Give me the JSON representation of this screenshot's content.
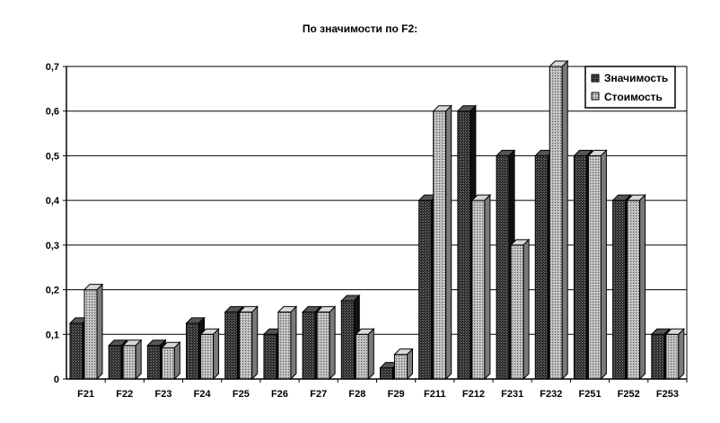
{
  "chart_data": {
    "type": "bar",
    "title": "По значимости по F2:",
    "xlabel": "",
    "ylabel": "",
    "categories": [
      "F21",
      "F22",
      "F23",
      "F24",
      "F25",
      "F26",
      "F27",
      "F28",
      "F29",
      "F211",
      "F212",
      "F231",
      "F232",
      "F251",
      "F252",
      "F253"
    ],
    "series": [
      {
        "name": "Значимость",
        "values": [
          0.125,
          0.075,
          0.075,
          0.125,
          0.15,
          0.1,
          0.15,
          0.175,
          0.025,
          0.4,
          0.6,
          0.5,
          0.5,
          0.5,
          0.4,
          0.1
        ],
        "color": "#2a2a2a"
      },
      {
        "name": "Стоимость",
        "values": [
          0.2,
          0.075,
          0.07,
          0.1,
          0.15,
          0.15,
          0.15,
          0.1,
          0.055,
          0.6,
          0.4,
          0.3,
          0.7,
          0.5,
          0.4,
          0.1
        ],
        "color": "#a9a9a9"
      }
    ],
    "ylim": [
      0,
      0.7
    ],
    "yticks": [
      "0",
      "0,1",
      "0,2",
      "0,3",
      "0,4",
      "0,5",
      "0,6",
      "0,7"
    ],
    "grid": true,
    "legend_position": "top-right",
    "bar_style": "3d"
  }
}
